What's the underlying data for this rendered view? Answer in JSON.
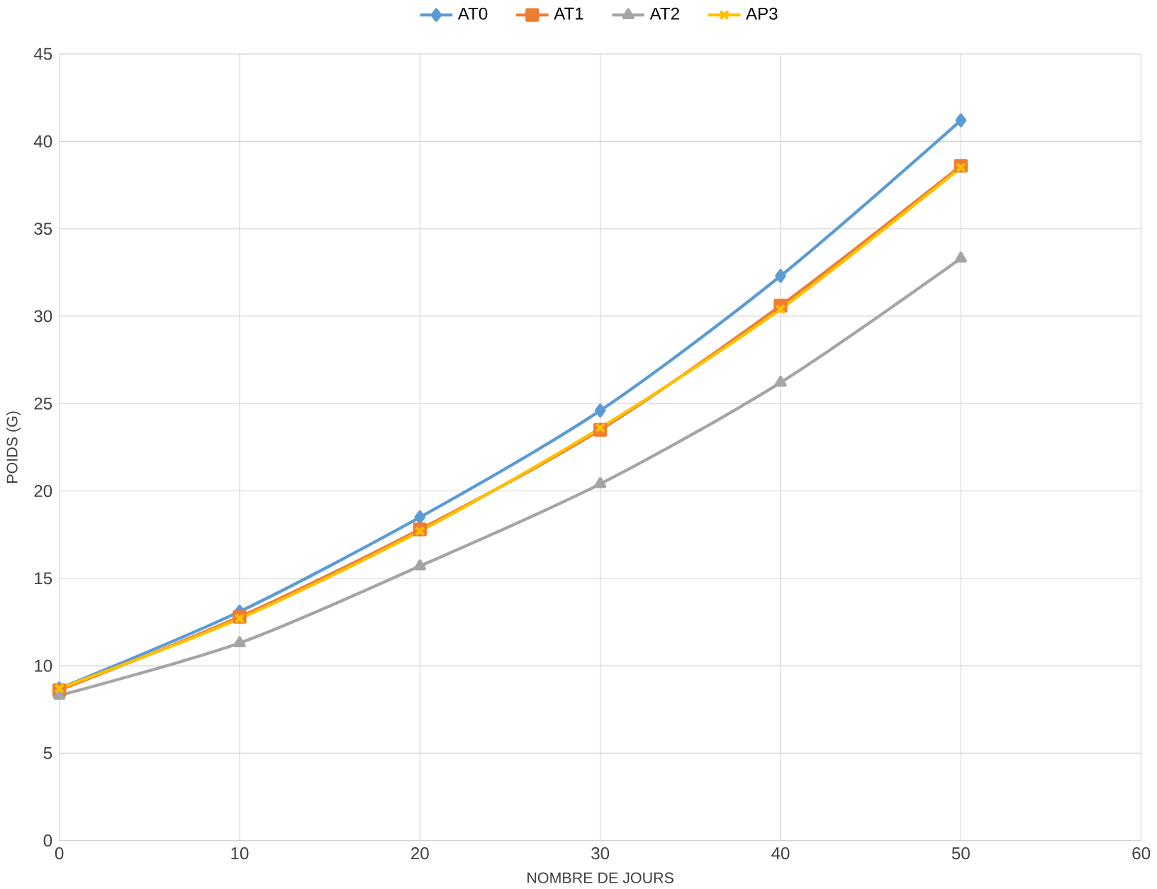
{
  "chart_data": {
    "type": "line",
    "xlabel": "NOMBRE DE JOURS",
    "ylabel": "POIDS (G)",
    "x": [
      0,
      10,
      20,
      30,
      40,
      50
    ],
    "series": [
      {
        "name": "AT0",
        "color": "#5b9bd5",
        "marker": "diamond",
        "values": [
          8.7,
          13.1,
          18.5,
          24.6,
          32.3,
          41.2
        ]
      },
      {
        "name": "AT1",
        "color": "#ed7d31",
        "marker": "square",
        "values": [
          8.6,
          12.8,
          17.8,
          23.5,
          30.6,
          38.6
        ]
      },
      {
        "name": "AT2",
        "color": "#a5a5a5",
        "marker": "triangle",
        "values": [
          8.3,
          11.3,
          15.7,
          20.4,
          26.2,
          33.3
        ]
      },
      {
        "name": "AP3",
        "color": "#ffc000",
        "marker": "cross",
        "values": [
          8.7,
          12.7,
          17.7,
          23.6,
          30.4,
          38.5
        ]
      }
    ],
    "xlim": [
      0,
      60
    ],
    "xticks": [
      0,
      10,
      20,
      30,
      40,
      50,
      60
    ],
    "ylim": [
      0,
      45
    ],
    "yticks": [
      0,
      5,
      10,
      15,
      20,
      25,
      30,
      35,
      40,
      45
    ],
    "grid": true,
    "legend": "top",
    "line_style": "solid"
  }
}
